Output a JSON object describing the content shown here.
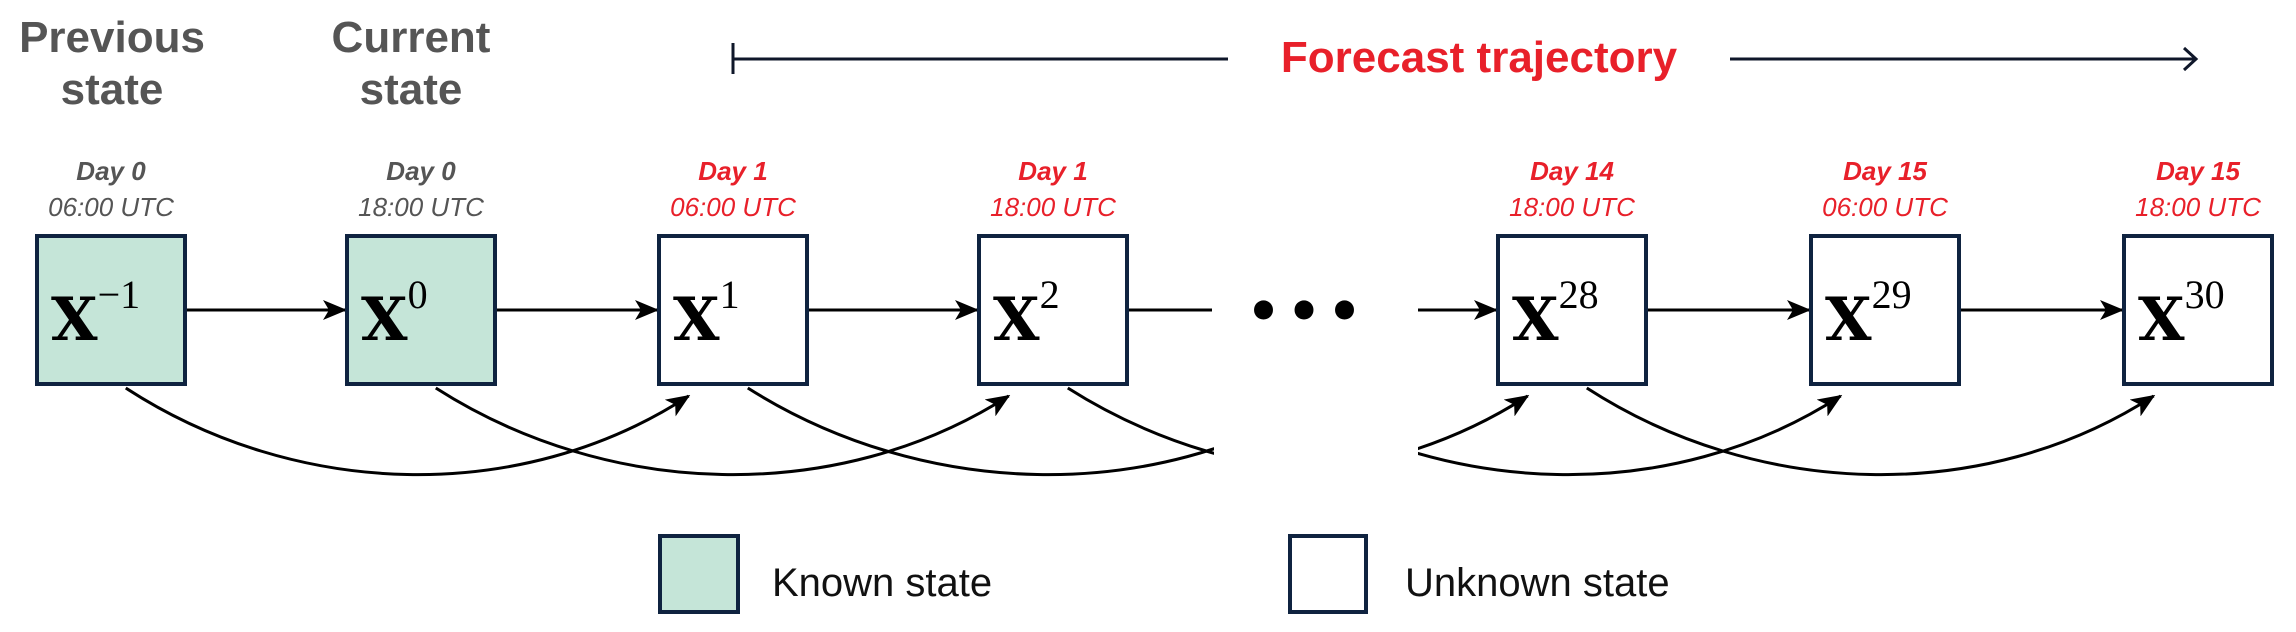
{
  "colors": {
    "known_fill": "#c5e5d8",
    "box_border": "#0f2340",
    "past_text": "#555555",
    "forecast_text": "#e8202a",
    "line": "#000000"
  },
  "headers": {
    "previous": [
      "Previous",
      "state"
    ],
    "current": [
      "Current",
      "state"
    ]
  },
  "forecast": {
    "title": "Forecast trajectory"
  },
  "nodes": [
    {
      "symbol": "X",
      "sup": "−1",
      "day": "Day 0",
      "time": "06:00 UTC",
      "known": true
    },
    {
      "symbol": "X",
      "sup": "0",
      "day": "Day 0",
      "time": "18:00 UTC",
      "known": true
    },
    {
      "symbol": "X",
      "sup": "1",
      "day": "Day 1",
      "time": "06:00 UTC",
      "known": false
    },
    {
      "symbol": "X",
      "sup": "2",
      "day": "Day 1",
      "time": "18:00 UTC",
      "known": false
    },
    {
      "symbol": "X",
      "sup": "28",
      "day": "Day 14",
      "time": "18:00 UTC",
      "known": false
    },
    {
      "symbol": "X",
      "sup": "29",
      "day": "Day 15",
      "time": "06:00 UTC",
      "known": false
    },
    {
      "symbol": "X",
      "sup": "30",
      "day": "Day 15",
      "time": "18:00 UTC",
      "known": false
    }
  ],
  "ellipsis": "•••",
  "legend": {
    "known": "Known state",
    "unknown": "Unknown state"
  }
}
